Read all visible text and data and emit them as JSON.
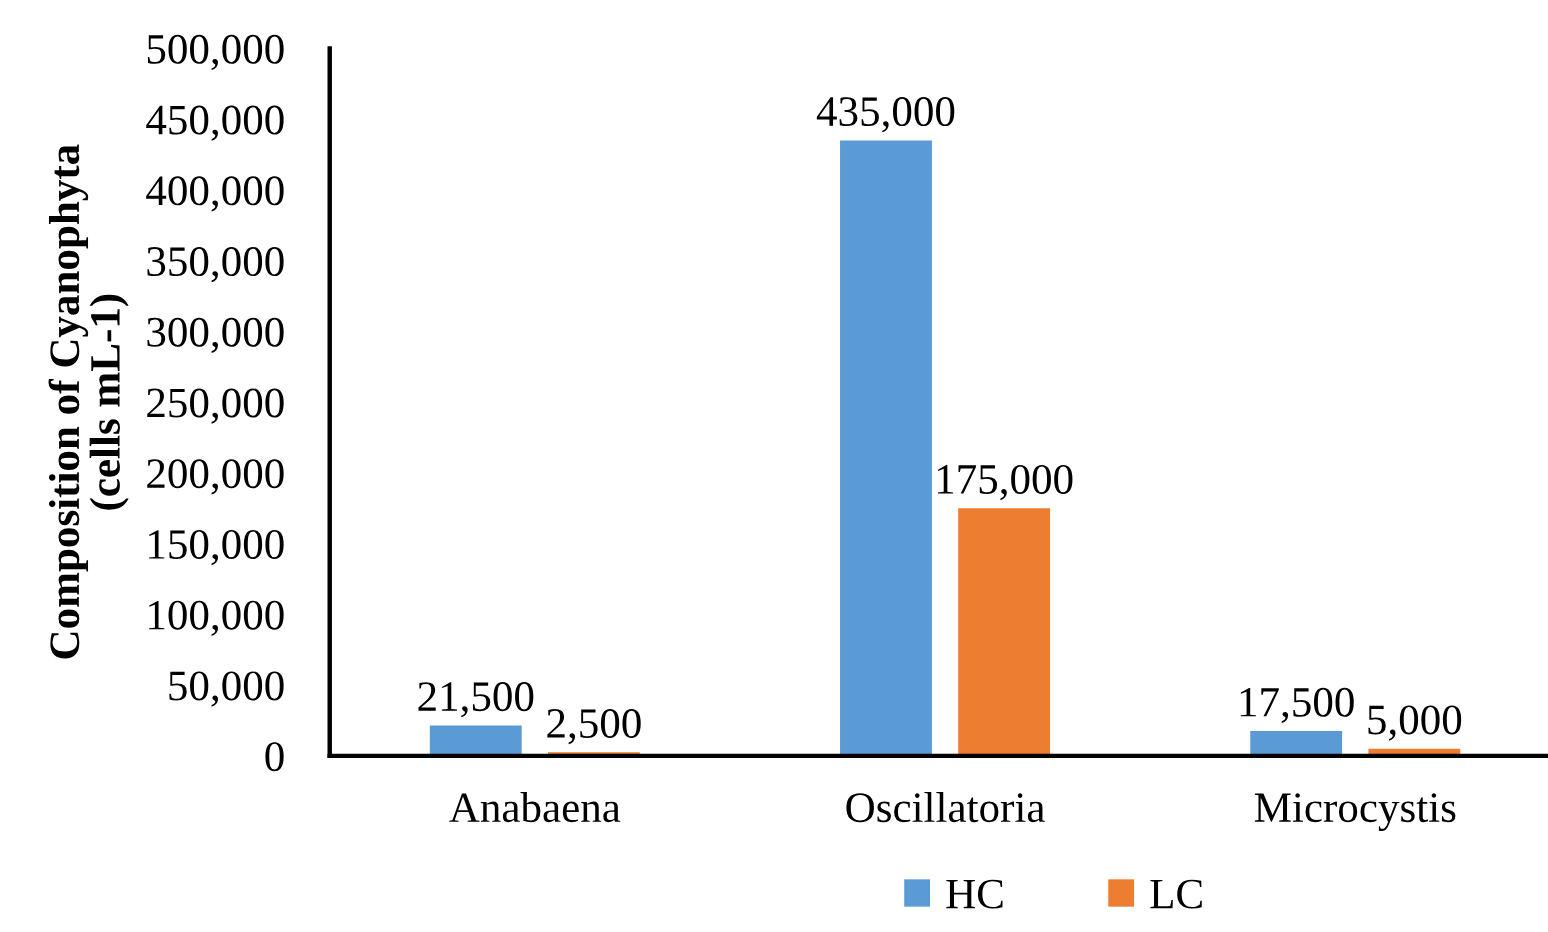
{
  "chart_data": {
    "type": "bar",
    "ylabel": "Composition of Cyanophyta\n(cells mL-1)",
    "categories": [
      "Anabaena",
      "Oscillatoria",
      "Microcystis"
    ],
    "series": [
      {
        "name": "HC",
        "color": "#5b9bd5",
        "values": [
          21500,
          435000,
          17500
        ],
        "value_labels": [
          "21,500",
          "435,000",
          "17,500"
        ]
      },
      {
        "name": "LC",
        "color": "#ed7d31",
        "values": [
          2500,
          175000,
          5000
        ],
        "value_labels": [
          "2,500",
          "175,000",
          "5,000"
        ]
      }
    ],
    "ylim": [
      0,
      500000
    ],
    "yticks": [
      {
        "value": 0,
        "label": "0"
      },
      {
        "value": 50000,
        "label": "50,000"
      },
      {
        "value": 100000,
        "label": "100,000"
      },
      {
        "value": 150000,
        "label": "150,000"
      },
      {
        "value": 200000,
        "label": "200,000"
      },
      {
        "value": 250000,
        "label": "250,000"
      },
      {
        "value": 300000,
        "label": "300,000"
      },
      {
        "value": 350000,
        "label": "350,000"
      },
      {
        "value": 400000,
        "label": "400,000"
      },
      {
        "value": 450000,
        "label": "450,000"
      },
      {
        "value": 500000,
        "label": "500,000"
      }
    ],
    "grid": false,
    "legend": "bottom"
  }
}
